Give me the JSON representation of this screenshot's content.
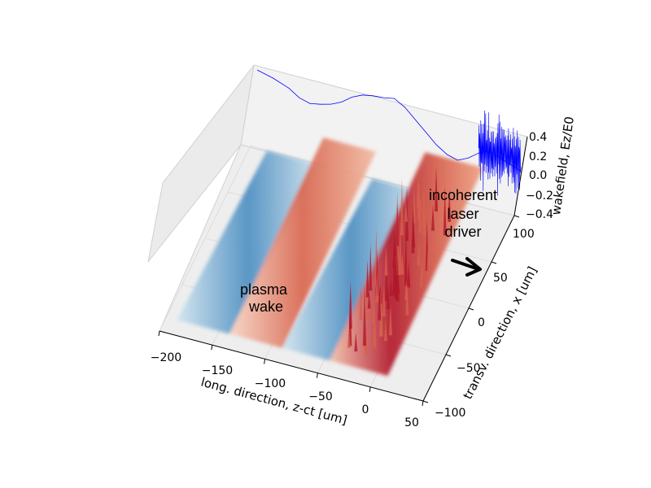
{
  "chart_data": {
    "type": "surface3d",
    "xlabel": "long. direction, z-ct [um]",
    "ylabel": "transv. direction, x [um]",
    "zlabel": "wakefield, Ez/E0",
    "x_ticks": [
      "−200",
      "−150",
      "−100",
      "−50",
      "0",
      "50"
    ],
    "y_ticks": [
      "−100",
      "−50",
      "0",
      "50",
      "100"
    ],
    "z_ticks": [
      "−0.4",
      "−0.2",
      "0.0",
      "0.2",
      "0.4"
    ],
    "xlim": [
      -200,
      50
    ],
    "ylim": [
      -100,
      100
    ],
    "zlim": [
      -0.4,
      0.4
    ],
    "grid": true,
    "colormap": "RdBu_r",
    "line_color": "#0000ff",
    "annotations": [
      {
        "text_lines": [
          "plasma",
          "wake"
        ]
      },
      {
        "text_lines": [
          "incoherent",
          "laser",
          "driver"
        ]
      }
    ],
    "wakefield_profile": {
      "x": [
        -200,
        -185,
        -170,
        -160,
        -150,
        -140,
        -130,
        -120,
        -110,
        -100,
        -90,
        -80,
        -70,
        -60,
        -50,
        -40,
        -30,
        -20,
        -10,
        0,
        10,
        20,
        30,
        40,
        50
      ],
      "values": [
        0.3,
        0.26,
        0.2,
        0.13,
        0.1,
        0.12,
        0.15,
        0.2,
        0.28,
        0.33,
        0.35,
        0.36,
        0.38,
        0.32,
        0.22,
        0.12,
        0.02,
        -0.05,
        -0.08,
        -0.03,
        0.05,
        0.1,
        0.06,
        0.02,
        -0.02
      ]
    },
    "surface_bands": [
      {
        "x_range": [
          -190,
          -140
        ],
        "sign": "negative",
        "amplitude": 0.3
      },
      {
        "x_range": [
          -140,
          -90
        ],
        "sign": "positive",
        "amplitude": 0.35
      },
      {
        "x_range": [
          -90,
          -45
        ],
        "sign": "negative",
        "amplitude": 0.3
      },
      {
        "x_range": [
          -45,
          10
        ],
        "sign": "positive",
        "amplitude": 0.45
      }
    ]
  }
}
